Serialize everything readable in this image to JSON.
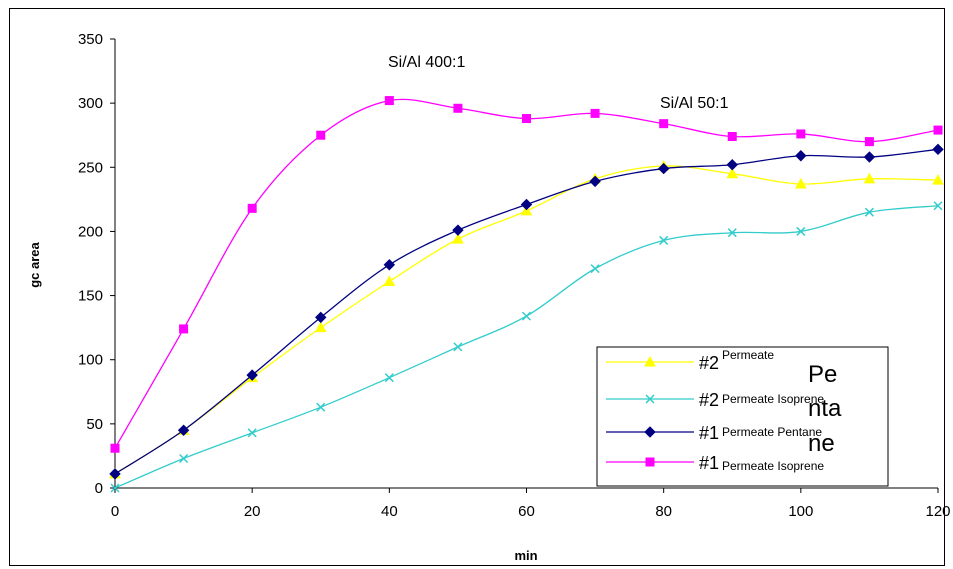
{
  "chart_data": {
    "type": "line",
    "xlabel": "min",
    "ylabel": "gc area",
    "xlim": [
      0,
      120
    ],
    "ylim": [
      0,
      350
    ],
    "xticks": [
      0,
      20,
      40,
      60,
      80,
      100,
      120
    ],
    "yticks": [
      0,
      50,
      100,
      150,
      200,
      250,
      300,
      350
    ],
    "grid": false,
    "legend_position": "bottom-right",
    "x": [
      0,
      10,
      20,
      30,
      40,
      50,
      60,
      70,
      80,
      90,
      100,
      110,
      120
    ],
    "annotations": [
      "Si/Al 400:1",
      "Si/Al 50:1"
    ],
    "series": [
      {
        "prefix": "#2",
        "name": "Permeate",
        "color": "#FFFF00",
        "marker": "triangle",
        "values": [
          11,
          45,
          86,
          125,
          161,
          194,
          216,
          241,
          251,
          245,
          237,
          241,
          240
        ]
      },
      {
        "prefix": "#2",
        "name": "Permeate Isoprene",
        "color": "#33CCCC",
        "marker": "x",
        "values": [
          0,
          23,
          43,
          63,
          86,
          110,
          134,
          171,
          193,
          199,
          200,
          215,
          220
        ]
      },
      {
        "prefix": "#1",
        "name": "Permeate Pentane",
        "color": "#000080",
        "marker": "diamond",
        "values": [
          11,
          45,
          88,
          133,
          174,
          201,
          221,
          239,
          249,
          252,
          259,
          258,
          264
        ]
      },
      {
        "prefix": "#1",
        "name": "Permeate Isoprene",
        "color": "#FF00FF",
        "marker": "square",
        "values": [
          31,
          124,
          218,
          275,
          302,
          296,
          288,
          292,
          284,
          274,
          276,
          270,
          279
        ]
      }
    ],
    "legend_overflow_text": [
      "Pe",
      "nta",
      "ne"
    ]
  }
}
